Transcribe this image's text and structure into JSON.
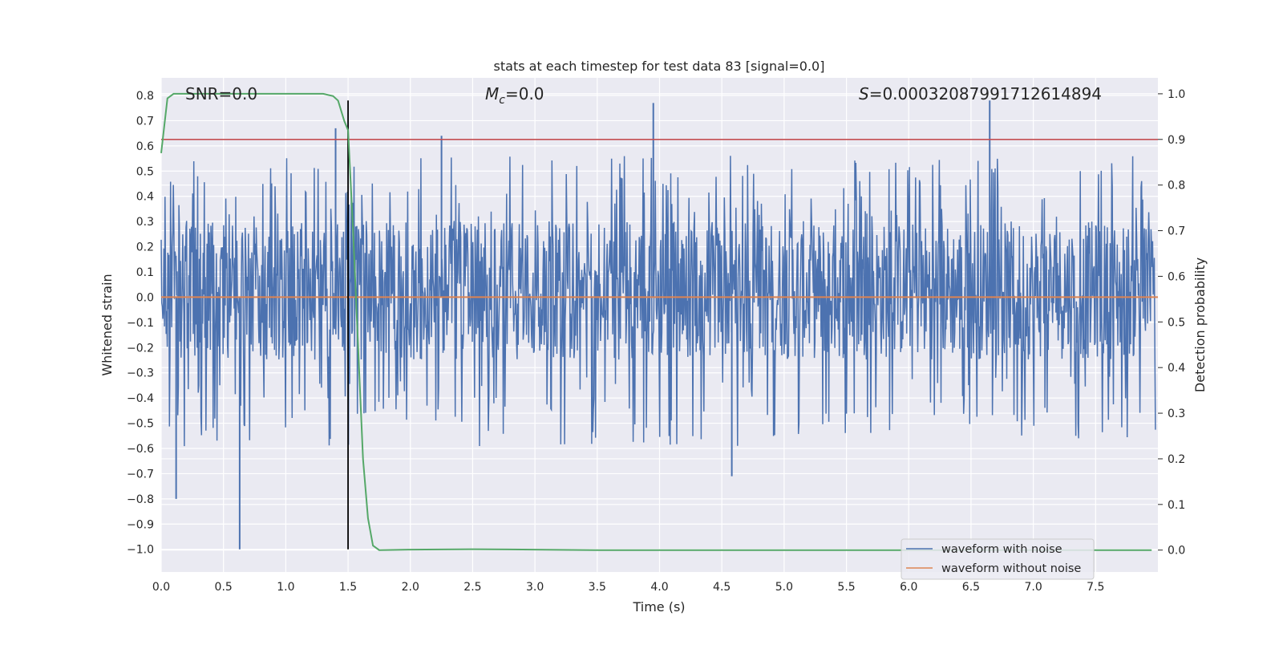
{
  "chart_data": {
    "type": "line",
    "title": "stats at each timestep for test data 83 [signal=0.0]",
    "xlabel": "Time (s)",
    "ylabel": "Whitened strain",
    "y2label": "Detection probability",
    "xlim": [
      0.0,
      8.0
    ],
    "ylim": [
      -1.09,
      0.87
    ],
    "y2lim": [
      -0.048,
      1.035
    ],
    "xticks": [
      "0.0",
      "0.5",
      "1.0",
      "1.5",
      "2.0",
      "2.5",
      "3.0",
      "3.5",
      "4.0",
      "4.5",
      "5.0",
      "5.5",
      "6.0",
      "6.5",
      "7.0",
      "7.5"
    ],
    "yticks": [
      "0.8",
      "0.7",
      "0.6",
      "0.5",
      "0.4",
      "0.3",
      "0.2",
      "0.1",
      "0.0",
      "-0.1",
      "-0.2",
      "-0.3",
      "-0.4",
      "-0.5",
      "-0.6",
      "-0.7",
      "-0.8",
      "-0.9",
      "-1.0"
    ],
    "y2ticks": [
      "1.0",
      "0.9",
      "0.8",
      "0.7",
      "0.6",
      "0.5",
      "0.4",
      "0.3",
      "0.2",
      "0.1",
      "0.0"
    ],
    "grid": true,
    "legend_position": "bottom-right",
    "annotations": {
      "snr": "SNR=0.0",
      "mc_symbol": "M",
      "mc_sub": "c",
      "mc_value": "=0.0",
      "s_symbol": "S",
      "s_value": "=0.00032087991712614894"
    },
    "series": [
      {
        "name": "waveform with noise",
        "color": "#4c72b0",
        "description": "dense noisy whitened strain trace",
        "typical_range": [
          -0.35,
          0.45
        ],
        "extremes": [
          {
            "x": 0.12,
            "y": -0.8
          },
          {
            "x": 0.63,
            "y": -1.0
          },
          {
            "x": 1.4,
            "y": 0.67
          },
          {
            "x": 2.25,
            "y": 0.64
          },
          {
            "x": 3.95,
            "y": 0.77
          },
          {
            "x": 4.58,
            "y": -0.71
          },
          {
            "x": 6.65,
            "y": 0.78
          }
        ]
      },
      {
        "name": "waveform without noise",
        "color": "#dd8452",
        "x": [
          0.0,
          8.0
        ],
        "y": [
          0.0,
          0.0
        ]
      },
      {
        "axis": "right",
        "color": "#55a868",
        "x": [
          0.0,
          0.05,
          0.1,
          0.15,
          0.3,
          0.5,
          1.0,
          1.2,
          1.3,
          1.38,
          1.42,
          1.47,
          1.5,
          1.54,
          1.58,
          1.62,
          1.66,
          1.7,
          1.75,
          2.0,
          2.5,
          3.0,
          3.5,
          4.0,
          5.0,
          6.0,
          7.0,
          7.95
        ],
        "y": [
          0.87,
          0.99,
          1.0,
          1.0,
          1.0,
          1.0,
          1.0,
          1.0,
          1.0,
          0.995,
          0.985,
          0.94,
          0.92,
          0.7,
          0.45,
          0.2,
          0.07,
          0.01,
          0.0,
          0.001,
          0.002,
          0.001,
          0.0,
          0.0,
          0.0,
          0.0,
          0.0,
          0.0
        ]
      }
    ],
    "reference_lines": [
      {
        "orientation": "horizontal",
        "axis": "right",
        "value": 0.9,
        "color": "#c44e52"
      },
      {
        "orientation": "vertical",
        "value": 1.5,
        "color": "#000000",
        "ymin": -1.0,
        "ymax": 0.78
      }
    ]
  },
  "colors": {
    "axes_background": "#eaeaf2",
    "grid": "#ffffff"
  }
}
